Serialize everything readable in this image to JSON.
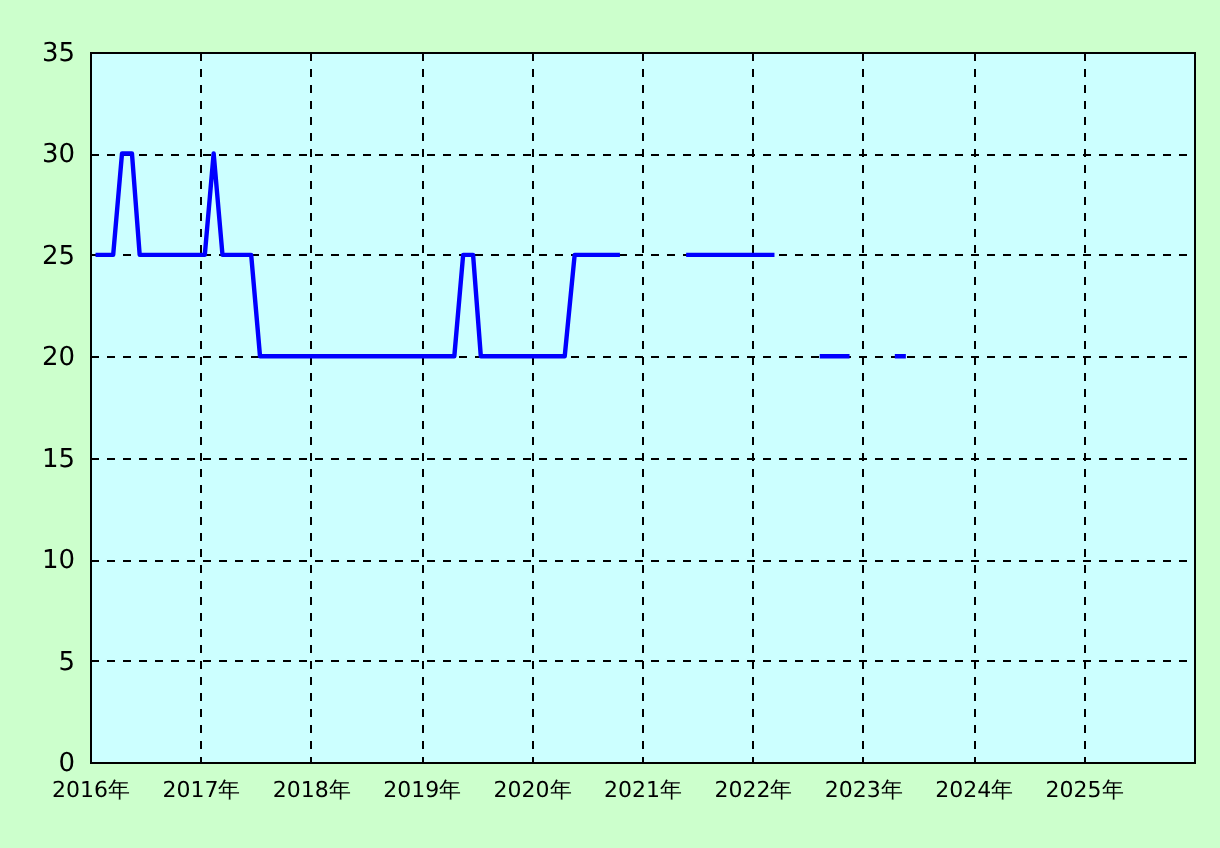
{
  "chart_data": {
    "type": "line",
    "x": [
      2016.05,
      2016.21,
      2016.29,
      2016.38,
      2016.45,
      2017.04,
      2017.12,
      2017.2,
      2017.46,
      2017.54,
      2019.3,
      2019.38,
      2019.47,
      2019.54,
      2020.3,
      2020.39,
      2020.8,
      2021.1,
      2021.4,
      2022.2,
      2022.4,
      2022.61,
      2022.88,
      2023.1,
      2023.29,
      2023.39
    ],
    "series": [
      {
        "color": "#0000ff",
        "values": [
          25,
          25,
          30,
          30,
          25,
          25,
          30,
          25,
          25,
          20,
          20,
          25,
          25,
          20,
          20,
          25,
          25,
          null,
          25,
          25,
          null,
          20,
          20,
          null,
          20,
          20
        ]
      }
    ],
    "xlim": [
      2016,
      2026
    ],
    "xticks": [
      {
        "value": 2016,
        "label": "2016年"
      },
      {
        "value": 2017,
        "label": "2017年"
      },
      {
        "value": 2018,
        "label": "2018年"
      },
      {
        "value": 2019,
        "label": "2019年"
      },
      {
        "value": 2020,
        "label": "2020年"
      },
      {
        "value": 2021,
        "label": "2021年"
      },
      {
        "value": 2022,
        "label": "2022年"
      },
      {
        "value": 2023,
        "label": "2023年"
      },
      {
        "value": 2024,
        "label": "2024年"
      },
      {
        "value": 2025,
        "label": "2025年"
      }
    ],
    "ylim": [
      0,
      35
    ],
    "yticks": [
      0,
      5,
      10,
      15,
      20,
      25,
      30,
      35
    ],
    "grid": true,
    "marker": "none",
    "line_style": "solid",
    "legend": false
  }
}
